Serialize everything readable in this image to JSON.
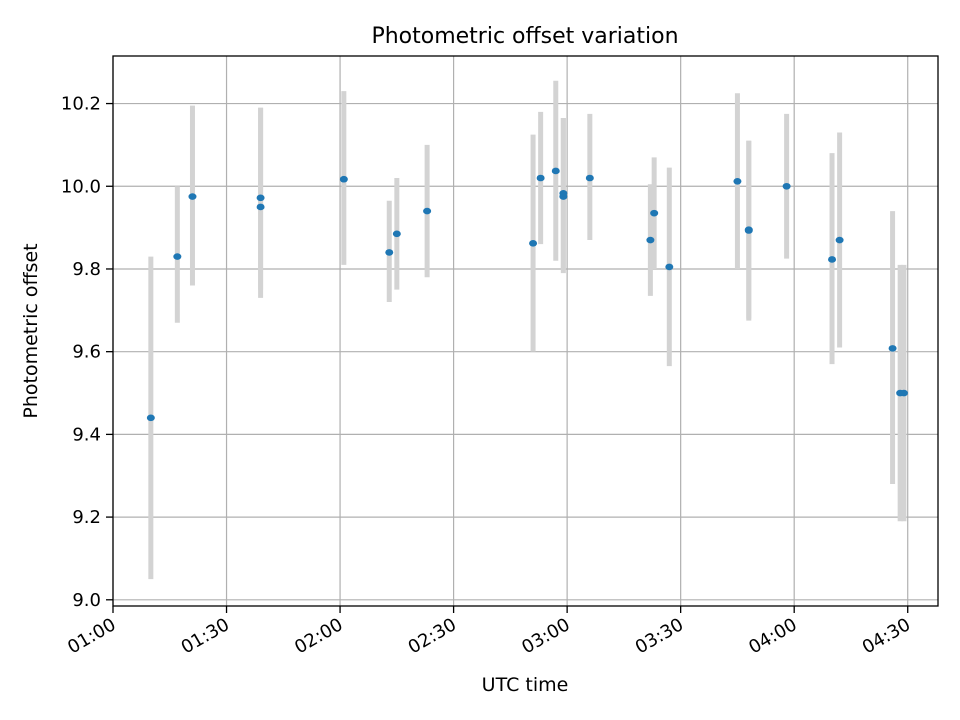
{
  "chart_data": {
    "type": "scatter",
    "title": "Photometric offset variation",
    "xlabel": "UTC time",
    "ylabel": "Photometric offset",
    "xlim": [
      "01:00",
      "04:38"
    ],
    "ylim": [
      8.985,
      10.315
    ],
    "x_ticks": [
      "01:00",
      "01:30",
      "02:00",
      "02:30",
      "03:00",
      "03:30",
      "04:00",
      "04:30"
    ],
    "y_ticks": [
      9.0,
      9.2,
      9.4,
      9.6,
      9.8,
      10.0,
      10.2
    ],
    "grid": true,
    "marker_color": "#1f77b4",
    "errorbar_color": "#d3d3d3",
    "points": [
      {
        "t": "01:10",
        "y": 9.44,
        "lo": 9.05,
        "hi": 9.83
      },
      {
        "t": "01:17",
        "y": 9.83,
        "lo": 9.67,
        "hi": 10.0
      },
      {
        "t": "01:21",
        "y": 9.975,
        "lo": 9.76,
        "hi": 10.195
      },
      {
        "t": "01:39",
        "y": 9.95,
        "lo": 9.73,
        "hi": 10.19
      },
      {
        "t": "01:39",
        "y": 9.972,
        "lo": 9.75,
        "hi": 10.19
      },
      {
        "t": "02:01",
        "y": 10.017,
        "lo": 9.81,
        "hi": 10.23
      },
      {
        "t": "02:13",
        "y": 9.84,
        "lo": 9.72,
        "hi": 9.965
      },
      {
        "t": "02:15",
        "y": 9.885,
        "lo": 9.75,
        "hi": 10.02
      },
      {
        "t": "02:23",
        "y": 9.94,
        "lo": 9.78,
        "hi": 10.1
      },
      {
        "t": "02:51",
        "y": 9.862,
        "lo": 9.6,
        "hi": 10.125
      },
      {
        "t": "02:53",
        "y": 10.02,
        "lo": 9.86,
        "hi": 10.18
      },
      {
        "t": "02:57",
        "y": 10.037,
        "lo": 9.82,
        "hi": 10.255
      },
      {
        "t": "02:59",
        "y": 9.975,
        "lo": 9.79,
        "hi": 10.165
      },
      {
        "t": "02:59",
        "y": 9.983,
        "lo": 9.8,
        "hi": 10.165
      },
      {
        "t": "03:06",
        "y": 10.02,
        "lo": 9.87,
        "hi": 10.175
      },
      {
        "t": "03:22",
        "y": 9.87,
        "lo": 9.735,
        "hi": 10.005
      },
      {
        "t": "03:23",
        "y": 9.935,
        "lo": 9.8,
        "hi": 10.07
      },
      {
        "t": "03:27",
        "y": 9.805,
        "lo": 9.565,
        "hi": 10.045
      },
      {
        "t": "03:45",
        "y": 10.012,
        "lo": 9.8,
        "hi": 10.225
      },
      {
        "t": "03:48",
        "y": 9.893,
        "lo": 9.675,
        "hi": 10.11
      },
      {
        "t": "03:48",
        "y": 9.895,
        "lo": 9.68,
        "hi": 10.11
      },
      {
        "t": "03:58",
        "y": 10.0,
        "lo": 9.825,
        "hi": 10.175
      },
      {
        "t": "04:10",
        "y": 9.823,
        "lo": 9.57,
        "hi": 10.08
      },
      {
        "t": "04:12",
        "y": 9.87,
        "lo": 9.61,
        "hi": 10.13
      },
      {
        "t": "04:26",
        "y": 9.608,
        "lo": 9.28,
        "hi": 9.94
      },
      {
        "t": "04:28",
        "y": 9.5,
        "lo": 9.19,
        "hi": 9.81
      },
      {
        "t": "04:29",
        "y": 9.5,
        "lo": 9.19,
        "hi": 9.81
      }
    ]
  }
}
